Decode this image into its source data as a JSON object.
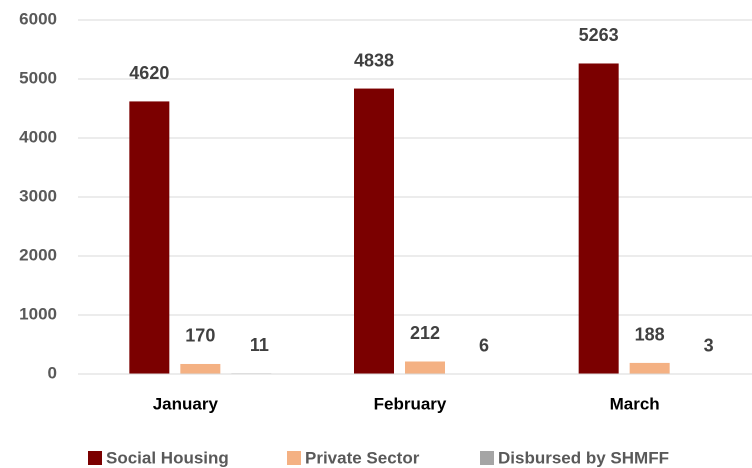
{
  "chart_data": {
    "type": "bar",
    "categories": [
      "January",
      "February",
      "March"
    ],
    "series": [
      {
        "name": "Social Housing",
        "color": "#7b0000",
        "values": [
          4620,
          4838,
          5263
        ]
      },
      {
        "name": "Private Sector",
        "color": "#f4b183",
        "values": [
          170,
          212,
          188
        ]
      },
      {
        "name": "Disbursed by SHMFF",
        "color": "#a5a5a5",
        "values": [
          11,
          6,
          3
        ]
      }
    ],
    "ylim": [
      0,
      6000
    ],
    "yticks": [
      0,
      1000,
      2000,
      3000,
      4000,
      5000,
      6000
    ],
    "grid": true,
    "legend": "bottom"
  }
}
